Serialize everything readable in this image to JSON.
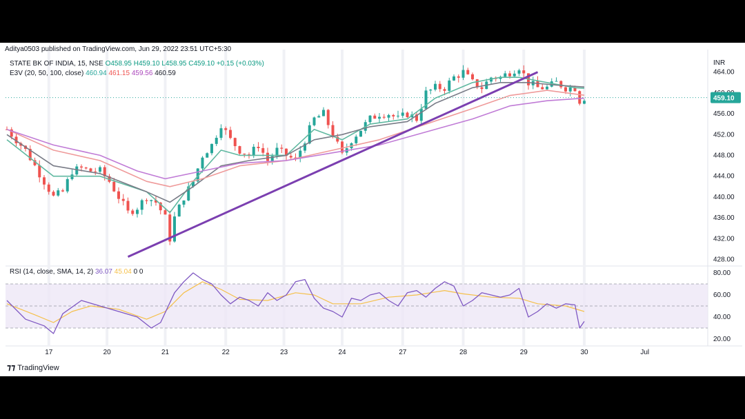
{
  "header": {
    "publisher": "Aditya0503 published on TradingView.com, Jun 29, 2022 23:51 UTC+5:30"
  },
  "legend": {
    "symbol": "STATE BK OF INDIA, 15, NSE",
    "open": "O458.95",
    "high": "H459.10",
    "low": "L458.95",
    "close": "C459.10",
    "change": "+0.15 (+0.03%)",
    "ema_label": "E3V (20, 50, 100, close)",
    "ema_values": [
      "460.94",
      "461.15",
      "459.56",
      "460.59"
    ],
    "rsi_label": "RSI (14, close, SMA, 14, 2)",
    "rsi_values": [
      "36.07",
      "45.04",
      "0",
      "0"
    ]
  },
  "footer": {
    "logo": "TradingView"
  },
  "colors": {
    "up": "#26a69a",
    "down": "#ef5350",
    "ema20": "#5fb8a0",
    "ema50": "#787b86",
    "ema100": "#ef9a9a",
    "ema200": "#c07bd6",
    "trendline": "#7b3fb0",
    "rsi": "#7e57c2",
    "rsi_sma": "#f5c04a",
    "price_tag": "#26a69a"
  },
  "chart_data": {
    "type": "candlestick",
    "symbol": "STATE BK OF INDIA",
    "interval": "15",
    "currency": "INR",
    "x_ticks": [
      "17",
      "20",
      "21",
      "22",
      "23",
      "24",
      "27",
      "28",
      "29",
      "30",
      "Jul"
    ],
    "y_ticks": [
      "428.00",
      "432.00",
      "436.00",
      "440.00",
      "444.00",
      "448.00",
      "452.00",
      "456.00",
      "460.00",
      "464.00"
    ],
    "ylim": [
      427,
      467
    ],
    "last_price": "459.10",
    "price_path": [
      [
        0,
        453
      ],
      [
        2,
        451
      ],
      [
        4,
        449
      ],
      [
        6,
        446
      ],
      [
        8,
        443
      ],
      [
        10,
        440
      ],
      [
        12,
        441
      ],
      [
        14,
        445
      ],
      [
        16,
        445.5
      ],
      [
        18,
        445
      ],
      [
        20,
        445
      ],
      [
        22,
        443
      ],
      [
        24,
        440
      ],
      [
        26,
        437
      ],
      [
        28,
        438
      ],
      [
        30,
        440
      ],
      [
        32,
        439
      ],
      [
        34,
        436
      ],
      [
        35,
        432
      ],
      [
        36,
        436
      ],
      [
        38,
        440
      ],
      [
        40,
        443
      ],
      [
        42,
        448
      ],
      [
        44,
        450
      ],
      [
        46,
        454
      ],
      [
        48,
        451
      ],
      [
        50,
        449
      ],
      [
        52,
        448
      ],
      [
        54,
        450
      ],
      [
        56,
        447
      ],
      [
        58,
        449
      ],
      [
        60,
        448
      ],
      [
        62,
        447
      ],
      [
        64,
        451
      ],
      [
        66,
        455
      ],
      [
        68,
        456
      ],
      [
        70,
        452
      ],
      [
        72,
        448
      ],
      [
        74,
        451
      ],
      [
        76,
        453
      ],
      [
        78,
        455
      ],
      [
        80,
        456
      ],
      [
        82,
        456
      ],
      [
        84,
        455
      ],
      [
        86,
        456
      ],
      [
        88,
        455
      ],
      [
        90,
        460
      ],
      [
        92,
        461
      ],
      [
        94,
        461
      ],
      [
        96,
        463
      ],
      [
        98,
        464
      ],
      [
        100,
        462
      ],
      [
        102,
        461
      ],
      [
        104,
        463
      ],
      [
        106,
        463
      ],
      [
        108,
        464
      ],
      [
        110,
        465
      ],
      [
        112,
        462
      ],
      [
        114,
        461
      ],
      [
        116,
        461
      ],
      [
        118,
        462
      ],
      [
        120,
        461
      ],
      [
        122,
        461
      ],
      [
        123,
        458.5
      ],
      [
        124,
        459.1
      ]
    ],
    "ema_lines": [
      {
        "name": "20",
        "color_key": "ema20",
        "values": [
          [
            0,
            451
          ],
          [
            10,
            444
          ],
          [
            20,
            444
          ],
          [
            30,
            441
          ],
          [
            35,
            437
          ],
          [
            40,
            443
          ],
          [
            46,
            449
          ],
          [
            50,
            448
          ],
          [
            60,
            448
          ],
          [
            66,
            453
          ],
          [
            72,
            451
          ],
          [
            78,
            454
          ],
          [
            86,
            455
          ],
          [
            92,
            459
          ],
          [
            100,
            462
          ],
          [
            106,
            463
          ],
          [
            110,
            463
          ],
          [
            116,
            462
          ],
          [
            122,
            461
          ],
          [
            124,
            460.9
          ]
        ]
      },
      {
        "name": "50",
        "color_key": "ema50",
        "values": [
          [
            0,
            452
          ],
          [
            10,
            446
          ],
          [
            20,
            444.5
          ],
          [
            30,
            441
          ],
          [
            35,
            439
          ],
          [
            40,
            442
          ],
          [
            46,
            446
          ],
          [
            52,
            447
          ],
          [
            60,
            448
          ],
          [
            66,
            451
          ],
          [
            72,
            452
          ],
          [
            78,
            453.5
          ],
          [
            86,
            454.5
          ],
          [
            92,
            458
          ],
          [
            100,
            461
          ],
          [
            106,
            462
          ],
          [
            112,
            462
          ],
          [
            118,
            461.5
          ],
          [
            124,
            461.15
          ]
        ]
      },
      {
        "name": "100",
        "color_key": "ema100",
        "values": [
          [
            0,
            453
          ],
          [
            10,
            449
          ],
          [
            20,
            447
          ],
          [
            30,
            443
          ],
          [
            35,
            442
          ],
          [
            42,
            443.5
          ],
          [
            50,
            446
          ],
          [
            60,
            447
          ],
          [
            70,
            449
          ],
          [
            80,
            451
          ],
          [
            90,
            454
          ],
          [
            100,
            457
          ],
          [
            108,
            459.5
          ],
          [
            116,
            460.5
          ],
          [
            124,
            459.56
          ]
        ]
      },
      {
        "name": "200",
        "color_key": "ema200",
        "values": [
          [
            0,
            453
          ],
          [
            10,
            450
          ],
          [
            20,
            448
          ],
          [
            28,
            445
          ],
          [
            34,
            443.5
          ],
          [
            42,
            445
          ],
          [
            50,
            446.5
          ],
          [
            60,
            447
          ],
          [
            70,
            448.5
          ],
          [
            80,
            450
          ],
          [
            90,
            452.5
          ],
          [
            100,
            455
          ],
          [
            108,
            457.5
          ],
          [
            116,
            458.5
          ],
          [
            124,
            459
          ]
        ]
      }
    ],
    "trendline": [
      [
        26,
        428.5
      ],
      [
        114,
        464
      ]
    ],
    "rsi": {
      "ylim": [
        15,
        85
      ],
      "y_ticks": [
        "20.00",
        "40.00",
        "60.00",
        "80.00"
      ],
      "band": [
        30,
        70
      ],
      "mid": 50,
      "values": [
        [
          0,
          55
        ],
        [
          4,
          38
        ],
        [
          8,
          32
        ],
        [
          10,
          25
        ],
        [
          12,
          43
        ],
        [
          16,
          55
        ],
        [
          20,
          50
        ],
        [
          24,
          45
        ],
        [
          28,
          40
        ],
        [
          31,
          30
        ],
        [
          33,
          35
        ],
        [
          36,
          62
        ],
        [
          38,
          72
        ],
        [
          40,
          80
        ],
        [
          42,
          74
        ],
        [
          44,
          70
        ],
        [
          46,
          60
        ],
        [
          48,
          52
        ],
        [
          50,
          58
        ],
        [
          52,
          55
        ],
        [
          54,
          50
        ],
        [
          56,
          62
        ],
        [
          58,
          55
        ],
        [
          60,
          60
        ],
        [
          62,
          72
        ],
        [
          64,
          74
        ],
        [
          66,
          57
        ],
        [
          68,
          48
        ],
        [
          70,
          45
        ],
        [
          72,
          40
        ],
        [
          74,
          57
        ],
        [
          76,
          55
        ],
        [
          78,
          60
        ],
        [
          80,
          62
        ],
        [
          82,
          55
        ],
        [
          84,
          50
        ],
        [
          86,
          62
        ],
        [
          88,
          64
        ],
        [
          90,
          58
        ],
        [
          92,
          66
        ],
        [
          94,
          72
        ],
        [
          96,
          68
        ],
        [
          98,
          50
        ],
        [
          100,
          55
        ],
        [
          102,
          62
        ],
        [
          104,
          60
        ],
        [
          106,
          58
        ],
        [
          108,
          60
        ],
        [
          110,
          66
        ],
        [
          112,
          40
        ],
        [
          114,
          45
        ],
        [
          116,
          52
        ],
        [
          118,
          48
        ],
        [
          120,
          52
        ],
        [
          122,
          51
        ],
        [
          123,
          30
        ],
        [
          124,
          36
        ]
      ],
      "sma": [
        [
          0,
          52
        ],
        [
          6,
          42
        ],
        [
          10,
          35
        ],
        [
          14,
          45
        ],
        [
          18,
          50
        ],
        [
          24,
          47
        ],
        [
          30,
          38
        ],
        [
          34,
          45
        ],
        [
          38,
          62
        ],
        [
          42,
          72
        ],
        [
          46,
          65
        ],
        [
          50,
          56
        ],
        [
          56,
          55
        ],
        [
          62,
          62
        ],
        [
          66,
          60
        ],
        [
          70,
          52
        ],
        [
          76,
          52
        ],
        [
          82,
          58
        ],
        [
          88,
          60
        ],
        [
          94,
          64
        ],
        [
          98,
          61
        ],
        [
          104,
          58
        ],
        [
          110,
          57
        ],
        [
          114,
          52
        ],
        [
          120,
          50
        ],
        [
          124,
          45
        ]
      ]
    }
  }
}
